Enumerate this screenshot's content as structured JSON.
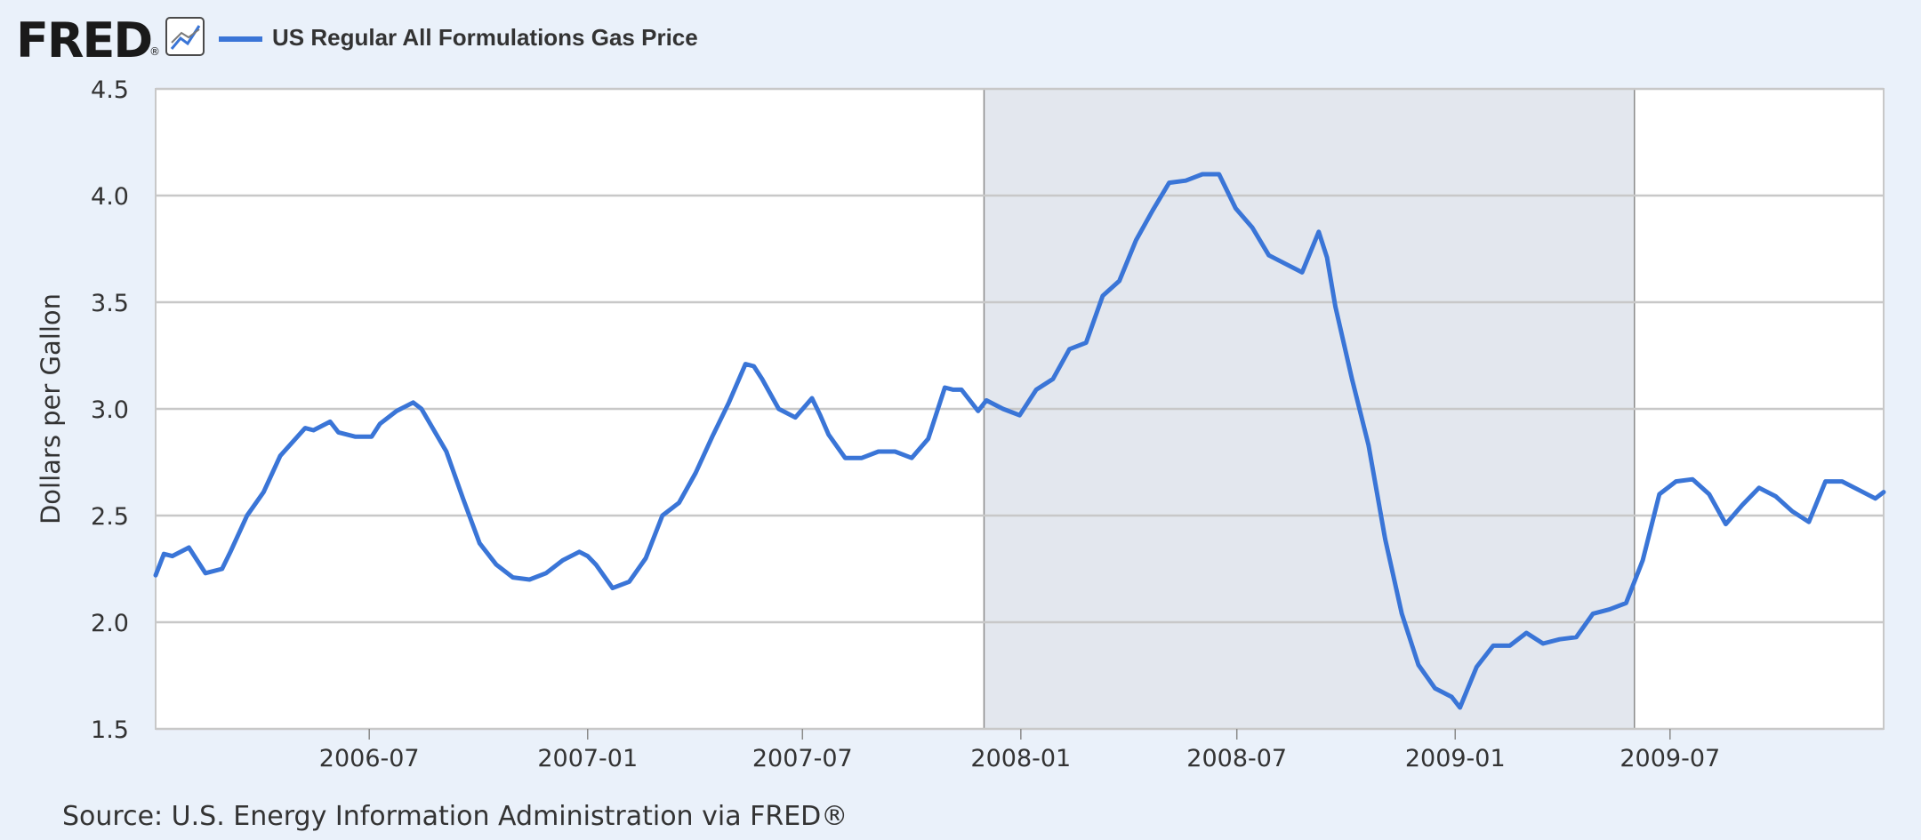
{
  "header": {
    "logo_text": "FRED",
    "logo_mark": "®",
    "chart_icon": "line-chart-icon",
    "legend_label": "US Regular All Formulations Gas Price"
  },
  "footer": {
    "source": "Source: U.S. Energy Information Administration via FRED®"
  },
  "colors": {
    "background": "#eaf1fa",
    "plot_bg": "#ffffff",
    "recession": "#e3e7ee",
    "line": "#3a75d7",
    "grid": "#c8c8c8",
    "text": "#333333",
    "logo": "#1a1a1a"
  },
  "chart_data": {
    "type": "line",
    "ylabel": "Dollars per Gallon",
    "xlabel": "",
    "ylim": [
      1.5,
      4.5
    ],
    "yticks": [
      "1.5",
      "2.0",
      "2.5",
      "3.0",
      "3.5",
      "4.0",
      "4.5"
    ],
    "xlim": [
      "2006-01-02",
      "2009-12-28"
    ],
    "xticks": [
      "2006-07",
      "2007-01",
      "2007-07",
      "2008-01",
      "2008-07",
      "2009-01",
      "2009-07"
    ],
    "grid": true,
    "recession": {
      "start": "2007-12-01",
      "end": "2009-06-01"
    },
    "series": [
      {
        "name": "US Regular All Formulations Gas Price",
        "x": [
          "2006-01-02",
          "2006-01-09",
          "2006-01-16",
          "2006-01-30",
          "2006-02-13",
          "2006-02-27",
          "2006-03-06",
          "2006-03-20",
          "2006-04-03",
          "2006-04-17",
          "2006-05-08",
          "2006-05-15",
          "2006-05-29",
          "2006-06-05",
          "2006-06-19",
          "2006-07-03",
          "2006-07-10",
          "2006-07-24",
          "2006-08-07",
          "2006-08-14",
          "2006-09-04",
          "2006-09-18",
          "2006-10-02",
          "2006-10-16",
          "2006-10-30",
          "2006-11-13",
          "2006-11-27",
          "2006-12-11",
          "2006-12-25",
          "2007-01-01",
          "2007-01-08",
          "2007-01-22",
          "2007-02-05",
          "2007-02-19",
          "2007-03-05",
          "2007-03-19",
          "2007-04-02",
          "2007-04-16",
          "2007-04-30",
          "2007-05-14",
          "2007-05-21",
          "2007-05-28",
          "2007-06-11",
          "2007-06-25",
          "2007-07-09",
          "2007-07-16",
          "2007-07-23",
          "2007-08-06",
          "2007-08-20",
          "2007-09-03",
          "2007-09-17",
          "2007-10-01",
          "2007-10-15",
          "2007-10-29",
          "2007-11-05",
          "2007-11-12",
          "2007-11-26",
          "2007-12-03",
          "2007-12-17",
          "2007-12-31",
          "2008-01-14",
          "2008-01-28",
          "2008-02-11",
          "2008-02-25",
          "2008-03-10",
          "2008-03-24",
          "2008-04-07",
          "2008-04-21",
          "2008-05-05",
          "2008-05-19",
          "2008-06-02",
          "2008-06-16",
          "2008-06-30",
          "2008-07-14",
          "2008-07-28",
          "2008-08-11",
          "2008-08-25",
          "2008-09-08",
          "2008-09-15",
          "2008-09-22",
          "2008-10-06",
          "2008-10-20",
          "2008-11-03",
          "2008-11-17",
          "2008-12-01",
          "2008-12-15",
          "2008-12-29",
          "2009-01-05",
          "2009-01-19",
          "2009-02-02",
          "2009-02-16",
          "2009-03-02",
          "2009-03-16",
          "2009-03-30",
          "2009-04-13",
          "2009-04-27",
          "2009-05-11",
          "2009-05-25",
          "2009-06-08",
          "2009-06-22",
          "2009-07-06",
          "2009-07-20",
          "2009-08-03",
          "2009-08-17",
          "2009-08-31",
          "2009-09-14",
          "2009-09-28",
          "2009-10-12",
          "2009-10-26",
          "2009-11-09",
          "2009-11-23",
          "2009-12-07",
          "2009-12-21",
          "2009-12-28"
        ],
        "values": [
          2.22,
          2.32,
          2.31,
          2.35,
          2.23,
          2.25,
          2.33,
          2.5,
          2.61,
          2.78,
          2.91,
          2.9,
          2.94,
          2.89,
          2.87,
          2.87,
          2.93,
          2.99,
          3.03,
          3.0,
          2.8,
          2.58,
          2.37,
          2.27,
          2.21,
          2.2,
          2.23,
          2.29,
          2.33,
          2.31,
          2.27,
          2.16,
          2.19,
          2.3,
          2.5,
          2.56,
          2.7,
          2.87,
          3.03,
          3.21,
          3.2,
          3.14,
          3.0,
          2.96,
          3.05,
          2.97,
          2.88,
          2.77,
          2.77,
          2.8,
          2.8,
          2.77,
          2.86,
          3.1,
          3.09,
          3.09,
          2.99,
          3.04,
          3.0,
          2.97,
          3.09,
          3.14,
          3.28,
          3.31,
          3.53,
          3.6,
          3.79,
          3.93,
          4.06,
          4.07,
          4.1,
          4.1,
          3.94,
          3.85,
          3.72,
          3.68,
          3.64,
          3.83,
          3.71,
          3.48,
          3.14,
          2.83,
          2.39,
          2.04,
          1.8,
          1.69,
          1.65,
          1.6,
          1.79,
          1.89,
          1.89,
          1.95,
          1.9,
          1.92,
          1.93,
          2.04,
          2.06,
          2.09,
          2.29,
          2.6,
          2.66,
          2.67,
          2.6,
          2.46,
          2.55,
          2.63,
          2.59,
          2.52,
          2.47,
          2.66,
          2.66,
          2.62,
          2.58,
          2.61
        ]
      }
    ]
  }
}
